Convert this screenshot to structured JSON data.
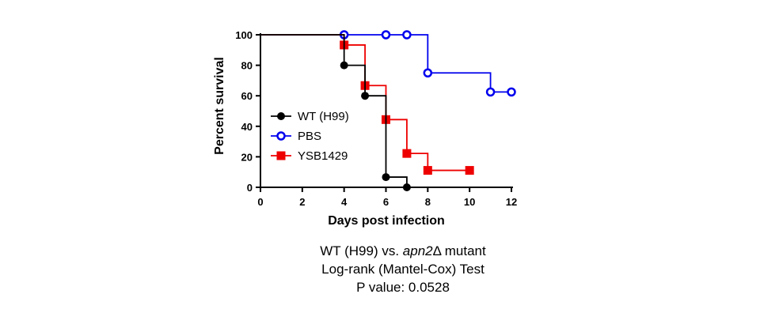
{
  "chart_data": {
    "type": "line",
    "xlabel": "Days post infection",
    "ylabel": "Percent survival",
    "xlim": [
      0,
      12
    ],
    "ylim": [
      0,
      100
    ],
    "xticks": [
      "0",
      "2",
      "4",
      "6",
      "8",
      "10",
      "12"
    ],
    "yticks": [
      "0",
      "20",
      "40",
      "60",
      "80",
      "100"
    ],
    "legend_position": "center-left",
    "step": true,
    "series": [
      {
        "name": "WT (H99)",
        "color": "#000000",
        "marker": "filled-circle",
        "steps": [
          [
            0,
            100
          ],
          [
            4,
            100
          ],
          [
            4,
            80
          ],
          [
            5,
            80
          ],
          [
            5,
            60
          ],
          [
            6,
            60
          ],
          [
            6,
            6.7
          ],
          [
            7,
            6.7
          ],
          [
            7,
            0
          ]
        ],
        "points": [
          [
            4,
            80
          ],
          [
            5,
            60
          ],
          [
            6,
            6.7
          ],
          [
            7,
            0
          ]
        ]
      },
      {
        "name": "PBS",
        "color": "#0000ee",
        "marker": "open-circle",
        "steps": [
          [
            0,
            100
          ],
          [
            8,
            100
          ],
          [
            8,
            75
          ],
          [
            11,
            75
          ],
          [
            11,
            62.5
          ],
          [
            12,
            62.5
          ]
        ],
        "points": [
          [
            4,
            100
          ],
          [
            6,
            100
          ],
          [
            7,
            100
          ],
          [
            8,
            75
          ],
          [
            11,
            62.5
          ],
          [
            12,
            62.5
          ]
        ]
      },
      {
        "name": "YSB1429",
        "color": "#ee0000",
        "marker": "filled-square",
        "steps": [
          [
            0,
            100
          ],
          [
            4,
            100
          ],
          [
            4,
            93.3
          ],
          [
            5,
            93.3
          ],
          [
            5,
            66.7
          ],
          [
            6,
            66.7
          ],
          [
            6,
            44.4
          ],
          [
            7,
            44.4
          ],
          [
            7,
            22.2
          ],
          [
            8,
            22.2
          ],
          [
            8,
            11.1
          ],
          [
            10,
            11.1
          ]
        ],
        "points": [
          [
            4,
            93.3
          ],
          [
            5,
            66.7
          ],
          [
            6,
            44.4
          ],
          [
            7,
            22.2
          ],
          [
            8,
            11.1
          ],
          [
            10,
            11.1
          ]
        ]
      }
    ]
  },
  "caption": {
    "line1_pre": "WT (H99) vs. ",
    "line1_italic": "apn2",
    "line1_post": "Δ mutant",
    "line2": "Log-rank (Mantel-Cox) Test",
    "line3": "P value: 0.0528"
  }
}
